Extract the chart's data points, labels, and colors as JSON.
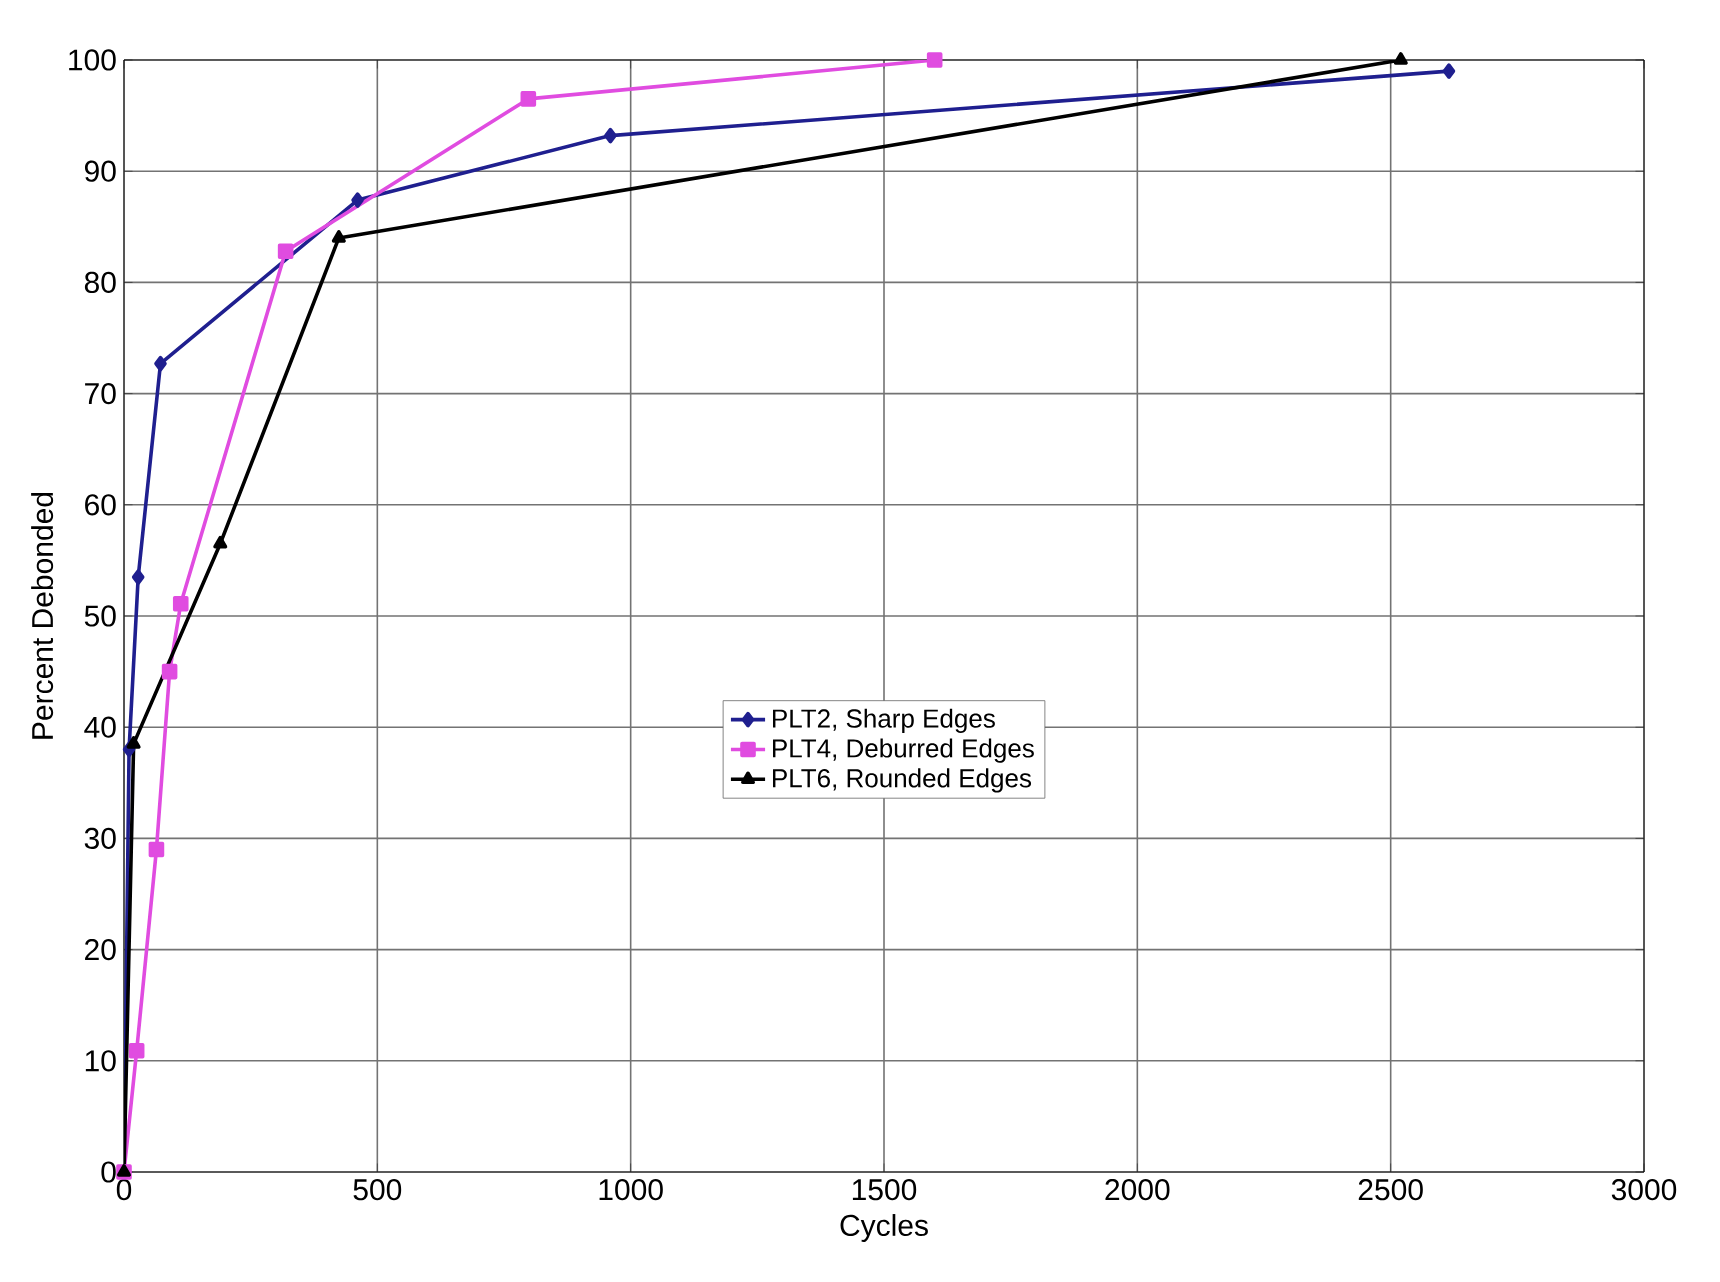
{
  "chart_data": {
    "type": "line",
    "xlabel": "Cycles",
    "ylabel": "Percent Debonded",
    "xlim": [
      0,
      3000
    ],
    "xticks": [
      0,
      500,
      1000,
      1500,
      2000,
      2500,
      3000
    ],
    "ylim": [
      0,
      100
    ],
    "yticks": [
      0,
      10,
      20,
      30,
      40,
      50,
      60,
      70,
      80,
      90,
      100
    ],
    "grid": true,
    "legend": "center",
    "series": [
      {
        "name": "PLT2, Sharp Edges",
        "color": "#1f1f8f",
        "marker": "diamond",
        "x": [
          0,
          10,
          28,
          72,
          461,
          960,
          2615
        ],
        "values": [
          0,
          38,
          53.5,
          72.7,
          87.4,
          93.2,
          99
        ]
      },
      {
        "name": "PLT4, Deburred Edges",
        "color": "#e04ce0",
        "marker": "square",
        "x": [
          0,
          25,
          64,
          90,
          112,
          319,
          798,
          1600
        ],
        "values": [
          0,
          10.9,
          29,
          45,
          51.1,
          82.8,
          96.5,
          100
        ]
      },
      {
        "name": "PLT6, Rounded Edges",
        "color": "#000000",
        "marker": "triangle",
        "x": [
          0,
          19,
          190,
          424,
          2520
        ],
        "values": [
          0,
          38.5,
          56.5,
          84,
          100
        ]
      }
    ]
  }
}
